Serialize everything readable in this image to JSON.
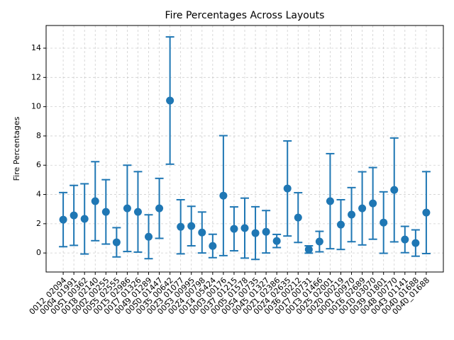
{
  "chart_data": {
    "type": "errorbar",
    "title": "Fire Percentages Across Layouts",
    "y_label": "Fire Percentages",
    "categories": [
      "0012_02094",
      "0004_01991",
      "0051_00362",
      "0018_02140",
      "0002_00255",
      "0055_02555",
      "0015_02986",
      "0017_01326",
      "0049_01289",
      "0050_01447",
      "0035_00642",
      "0023_01077",
      "0053_00995",
      "0024_00798",
      "0014_05424",
      "0003_00176",
      "0037_01215",
      "0005_01578",
      "0054_00735",
      "0045_01327",
      "0021_02386",
      "0024_02635",
      "0036_00212",
      "0017_00731",
      "0013_01466",
      "0025_02001",
      "0020_00219",
      "0001_00970",
      "0016_02689",
      "0010_03070",
      "0039_01801",
      "0048_00770",
      "0043_01141",
      "0040_01688",
      "0040_01688"
    ],
    "series": [
      {
        "name": "Fire Percentages",
        "color": "#1f77b4",
        "values": [
          2.28,
          2.57,
          2.33,
          3.54,
          2.81,
          0.73,
          3.05,
          2.81,
          1.11,
          3.05,
          10.42,
          1.79,
          1.84,
          1.4,
          0.48,
          3.92,
          1.65,
          1.7,
          1.36,
          1.45,
          0.82,
          4.41,
          2.42,
          0.24,
          0.78,
          3.54,
          1.94,
          2.62,
          3.05,
          3.39,
          2.08,
          4.31,
          0.92,
          0.68,
          2.76
        ],
        "errors": [
          1.85,
          2.05,
          2.4,
          2.7,
          2.2,
          1.0,
          2.95,
          2.75,
          1.5,
          2.05,
          4.35,
          1.85,
          1.35,
          1.4,
          0.8,
          4.1,
          1.5,
          2.05,
          1.8,
          1.45,
          0.45,
          3.25,
          1.7,
          0.25,
          0.7,
          3.25,
          1.7,
          1.85,
          2.5,
          2.45,
          2.1,
          3.55,
          0.9,
          0.9,
          2.8
        ]
      }
    ],
    "ylim": [
      -1.3,
      15.55
    ],
    "yticks": [
      0,
      2,
      4,
      6,
      8,
      10,
      12,
      14
    ],
    "grid": true
  }
}
